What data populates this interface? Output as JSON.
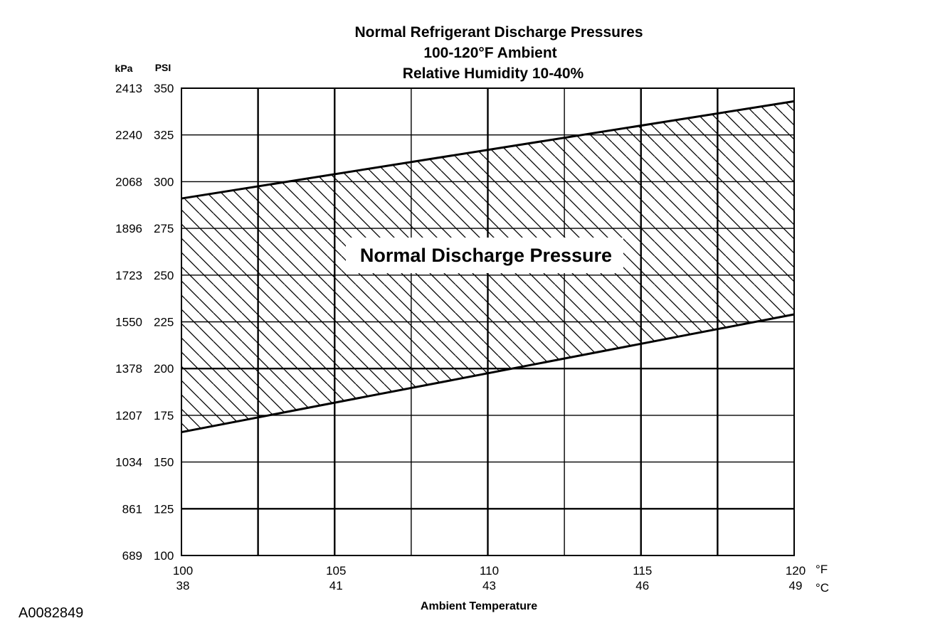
{
  "chart_data": {
    "type": "area",
    "title": [
      "Normal  Refrigerant  Discharge  Pressures",
      "100-120°F Ambient",
      "Relative Humidity 10-40%"
    ],
    "xlabel": "Ambient Temperature",
    "x_unit_primary": "°F",
    "x_unit_secondary": "°C",
    "y_unit_primary": "PSI",
    "y_unit_secondary": "kPa",
    "xlim": [
      100,
      120
    ],
    "ylim": [
      100,
      350
    ],
    "x_ticks": [
      {
        "f": "100",
        "c": "38",
        "value": 100
      },
      {
        "f": "105",
        "c": "41",
        "value": 105
      },
      {
        "f": "110",
        "c": "43",
        "value": 110
      },
      {
        "f": "115",
        "c": "46",
        "value": 115
      },
      {
        "f": "120",
        "c": "49",
        "value": 120
      }
    ],
    "y_ticks": [
      {
        "psi": "350",
        "kpa": "2413",
        "value": 350
      },
      {
        "psi": "325",
        "kpa": "2240",
        "value": 325
      },
      {
        "psi": "300",
        "kpa": "2068",
        "value": 300
      },
      {
        "psi": "275",
        "kpa": "1896",
        "value": 275
      },
      {
        "psi": "250",
        "kpa": "1723",
        "value": 250
      },
      {
        "psi": "225",
        "kpa": "1550",
        "value": 225
      },
      {
        "psi": "200",
        "kpa": "1378",
        "value": 200
      },
      {
        "psi": "175",
        "kpa": "1207",
        "value": 175
      },
      {
        "psi": "150",
        "kpa": "1034",
        "value": 150
      },
      {
        "psi": "125",
        "kpa": "861",
        "value": 125
      },
      {
        "psi": "100",
        "kpa": "689",
        "value": 100
      }
    ],
    "vertical_gridlines": [
      102.5,
      105,
      107.5,
      110,
      112.5,
      115,
      117.5
    ],
    "horizontal_gridlines": [
      125,
      150,
      175,
      200,
      225,
      250,
      275,
      300,
      325
    ],
    "grid": true,
    "band_label": "Normal Discharge Pressure",
    "band": {
      "upper": {
        "x": [
          100,
          120
        ],
        "y": [
          291,
          343
        ]
      },
      "lower": {
        "x": [
          100,
          120
        ],
        "y": [
          166,
          229
        ]
      }
    },
    "figure_id": "A0082849"
  }
}
